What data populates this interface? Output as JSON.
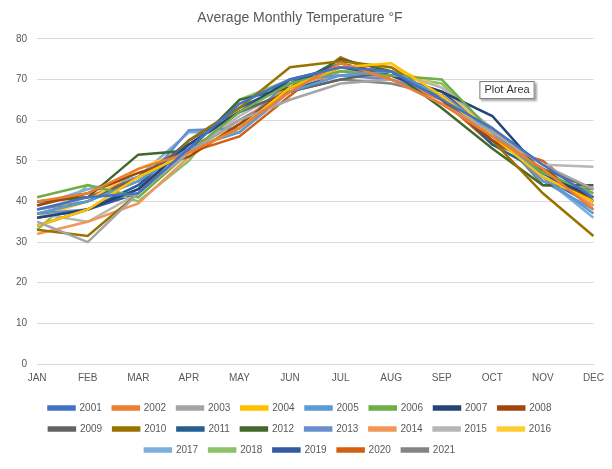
{
  "chart_data": {
    "type": "line",
    "title": "Average Monthly Temperature °F",
    "annotation": "Plot Area",
    "categories": [
      "JAN",
      "FEB",
      "MAR",
      "APR",
      "MAY",
      "JUN",
      "JUL",
      "AUG",
      "SEP",
      "OCT",
      "NOV",
      "DEC"
    ],
    "series": [
      {
        "name": "2001",
        "color": "#4472c4",
        "values": [
          38,
          41,
          42,
          53,
          64,
          70,
          73,
          72,
          65,
          58,
          49,
          41
        ]
      },
      {
        "name": "2002",
        "color": "#ed7d31",
        "values": [
          40,
          42,
          48,
          52,
          58,
          67,
          74,
          70,
          64,
          56,
          48,
          38
        ]
      },
      {
        "name": "2003",
        "color": "#a5a5a5",
        "values": [
          35,
          30,
          42,
          52,
          60,
          65,
          69,
          70,
          64,
          57,
          49,
          43
        ]
      },
      {
        "name": "2004",
        "color": "#ffc000",
        "values": [
          34,
          38,
          46,
          52,
          58,
          68,
          73,
          74,
          66,
          56,
          46,
          40
        ]
      },
      {
        "name": "2005",
        "color": "#5b9bd5",
        "values": [
          37,
          40,
          45,
          53,
          57,
          67,
          71,
          72,
          66,
          57,
          46,
          37
        ]
      },
      {
        "name": "2006",
        "color": "#70ad47",
        "values": [
          41,
          44,
          41,
          52,
          62,
          69,
          72,
          71,
          70,
          57,
          47,
          42
        ]
      },
      {
        "name": "2007",
        "color": "#264478",
        "values": [
          36,
          38,
          43,
          54,
          62,
          70,
          73,
          71,
          67,
          61,
          47,
          41
        ]
      },
      {
        "name": "2008",
        "color": "#9e480e",
        "values": [
          39,
          42,
          47,
          51,
          59,
          68,
          73,
          72,
          65,
          55,
          48,
          40
        ]
      },
      {
        "name": "2009",
        "color": "#636363",
        "values": [
          37,
          40,
          46,
          54,
          62,
          67,
          70,
          72,
          66,
          55,
          48,
          43
        ]
      },
      {
        "name": "2010",
        "color": "#997300",
        "values": [
          33,
          31.5,
          42,
          55,
          63,
          73,
          74.5,
          73,
          65,
          55,
          42,
          31.5
        ]
      },
      {
        "name": "2011",
        "color": "#255e91",
        "values": [
          34,
          38,
          44,
          55,
          63,
          69,
          74,
          71,
          66,
          54,
          47,
          40
        ]
      },
      {
        "name": "2012",
        "color": "#43682b",
        "values": [
          40,
          41,
          51.5,
          52.5,
          65,
          68,
          75,
          72,
          63,
          53,
          44,
          44
        ]
      },
      {
        "name": "2013",
        "color": "#698ed0",
        "values": [
          37,
          38,
          43,
          57.5,
          58,
          70,
          71,
          70,
          66,
          57,
          45,
          38
        ]
      },
      {
        "name": "2014",
        "color": "#f1975a",
        "values": [
          32,
          35,
          39.5,
          51,
          59,
          69,
          71,
          71,
          65,
          58,
          47,
          39
        ]
      },
      {
        "name": "2015",
        "color": "#b7b7b7",
        "values": [
          37,
          35,
          42,
          52,
          61,
          68,
          72,
          72,
          68,
          58,
          49,
          48.5
        ]
      },
      {
        "name": "2016",
        "color": "#ffcd33",
        "values": [
          36,
          40,
          48,
          53,
          59,
          68,
          72,
          73,
          68,
          57,
          47,
          39
        ]
      },
      {
        "name": "2017",
        "color": "#7cafdd",
        "values": [
          39,
          43,
          46,
          57,
          57,
          68,
          72,
          70,
          66,
          57,
          46,
          36
        ]
      },
      {
        "name": "2018",
        "color": "#8cc168",
        "values": [
          33,
          44,
          40,
          50,
          65,
          70,
          71,
          71,
          69,
          57,
          45,
          41
        ]
      },
      {
        "name": "2019",
        "color": "#335aa1",
        "values": [
          36,
          38,
          42,
          55,
          62,
          67,
          72,
          71,
          67,
          58,
          46,
          39
        ]
      },
      {
        "name": "2020",
        "color": "#d26012",
        "values": [
          40,
          41,
          46,
          52,
          56,
          66,
          75.5,
          70,
          65,
          54,
          50,
          40
        ]
      },
      {
        "name": "2021",
        "color": "#848484",
        "values": [
          38,
          40,
          45,
          53,
          60,
          67,
          70,
          69,
          66,
          58,
          44,
          43
        ]
      }
    ],
    "ylim": [
      0,
      80
    ],
    "yticks": [
      0,
      10,
      20,
      30,
      40,
      50,
      60,
      70,
      80
    ],
    "grid": true,
    "legend": "bottom",
    "marker": "none"
  }
}
